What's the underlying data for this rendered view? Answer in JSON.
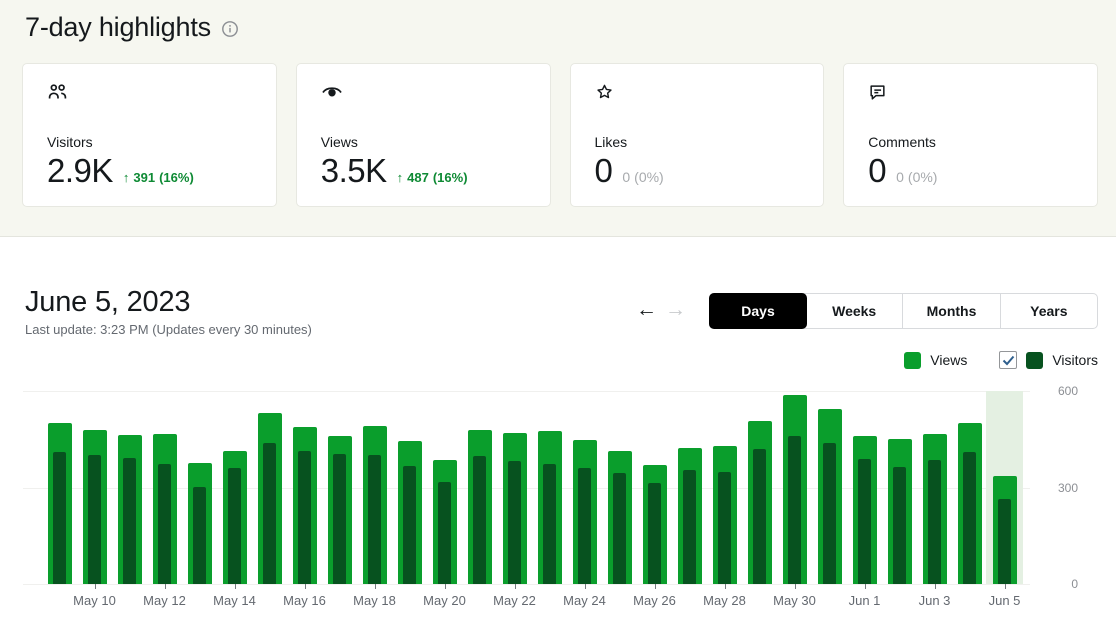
{
  "highlights": {
    "title": "7-day highlights",
    "cards": [
      {
        "icon": "people-icon",
        "label": "Visitors",
        "value": "2.9K",
        "arrow": "↑",
        "change": "391",
        "percent": "(16%)",
        "trend": "up"
      },
      {
        "icon": "eye-icon",
        "label": "Views",
        "value": "3.5K",
        "arrow": "↑",
        "change": "487",
        "percent": "(16%)",
        "trend": "up"
      },
      {
        "icon": "star-icon",
        "label": "Likes",
        "value": "0",
        "change": "0",
        "percent": "(0%)",
        "trend": "flat"
      },
      {
        "icon": "comment-icon",
        "label": "Comments",
        "value": "0",
        "change": "0",
        "percent": "(0%)",
        "trend": "flat"
      }
    ]
  },
  "period": {
    "title": "June 5, 2023",
    "last_update": "Last update: 3:23 PM (Updates every 30 minutes)",
    "prev_arrow": "←",
    "next_arrow": "→",
    "tabs": [
      "Days",
      "Weeks",
      "Months",
      "Years"
    ],
    "active_tab": "Days"
  },
  "legend": {
    "views_label": "Views",
    "visitors_label": "Visitors",
    "visitors_checked": true
  },
  "colors": {
    "views": "#0a9e2c",
    "visitors": "#07521f",
    "highlight_band": "#e4f0e2",
    "positive_text": "#0e8a34",
    "check": "#2e5f8d"
  },
  "chart_data": {
    "type": "bar",
    "title": "Daily views and visitors",
    "x": [
      "May 9",
      "May 10",
      "May 11",
      "May 12",
      "May 13",
      "May 14",
      "May 15",
      "May 16",
      "May 17",
      "May 18",
      "May 19",
      "May 20",
      "May 21",
      "May 22",
      "May 23",
      "May 24",
      "May 25",
      "May 26",
      "May 27",
      "May 28",
      "May 29",
      "May 30",
      "May 31",
      "Jun 1",
      "Jun 2",
      "Jun 3",
      "Jun 4",
      "Jun 5"
    ],
    "x_tick_labels": [
      "May 10",
      "May 12",
      "May 14",
      "May 16",
      "May 18",
      "May 20",
      "May 22",
      "May 24",
      "May 26",
      "May 28",
      "May 30",
      "Jun 1",
      "Jun 3",
      "Jun 5"
    ],
    "series": [
      {
        "name": "Views",
        "values": [
          500,
          479,
          463,
          466,
          376,
          413,
          532,
          488,
          460,
          491,
          445,
          385,
          479,
          470,
          476,
          448,
          413,
          370,
          423,
          429,
          507,
          588,
          544,
          460,
          451,
          466,
          501,
          336
        ]
      },
      {
        "name": "Visitors",
        "values": [
          411,
          401,
          392,
          373,
          302,
          361,
          438,
          413,
          404,
          401,
          367,
          317,
          398,
          382,
          373,
          361,
          345,
          314,
          354,
          348,
          420,
          460,
          438,
          389,
          364,
          385,
          411,
          264
        ]
      }
    ],
    "ylim": [
      0,
      600
    ],
    "yticks": [
      0,
      300,
      600
    ],
    "grid": true,
    "legend_position": "top-right",
    "highlighted_x": "Jun 5"
  }
}
